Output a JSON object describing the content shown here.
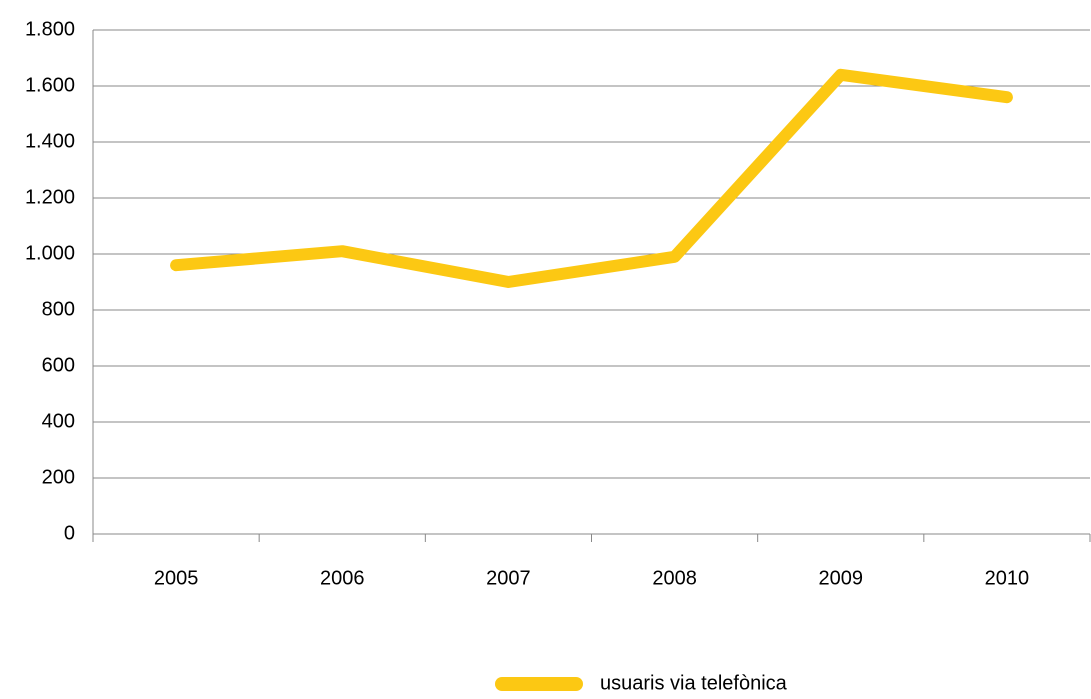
{
  "chart_data": {
    "type": "line",
    "categories": [
      "2005",
      "2006",
      "2007",
      "2008",
      "2009",
      "2010"
    ],
    "series": [
      {
        "name": "usuaris via telefònica",
        "color": "#fcc813",
        "values": [
          960,
          1010,
          900,
          990,
          1640,
          1560
        ]
      }
    ],
    "ylim": [
      0,
      1800
    ],
    "yticks": [
      0,
      200,
      400,
      600,
      800,
      {
        "value": 1000,
        "label": "1.000"
      },
      {
        "value": 1200,
        "label": "1.200"
      },
      {
        "value": 1400,
        "label": "1.400"
      },
      {
        "value": 1600,
        "label": "1.600"
      },
      {
        "value": 1800,
        "label": "1.800"
      }
    ],
    "grid": true,
    "legend": "bottom"
  }
}
